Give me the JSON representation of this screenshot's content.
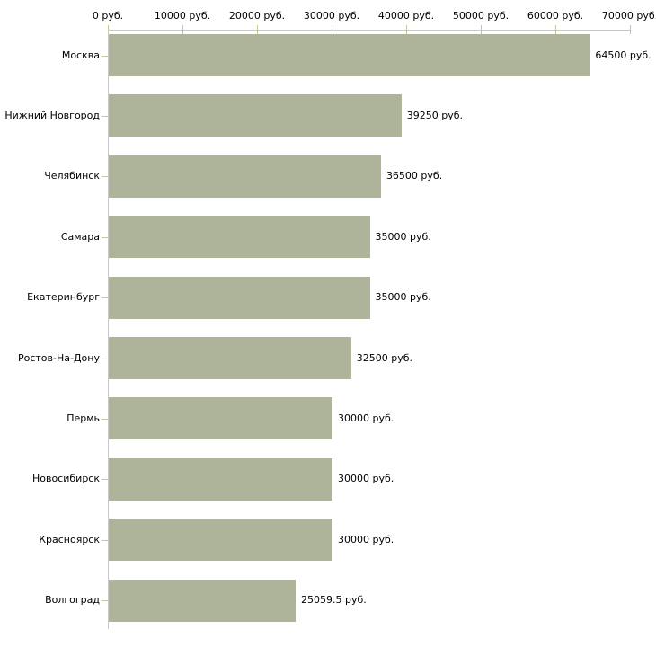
{
  "chart_data": {
    "type": "bar",
    "orientation": "horizontal",
    "title": "",
    "xlabel": "",
    "ylabel": "",
    "grid": false,
    "legend": false,
    "categories": [
      "Москва",
      "Нижний Новгород",
      "Челябинск",
      "Самара",
      "Екатеринбург",
      "Ростов-На-Дону",
      "Пермь",
      "Новосибирск",
      "Красноярск",
      "Волгоград"
    ],
    "values": [
      64500,
      39250,
      36500,
      35000,
      35000,
      32500,
      30000,
      30000,
      30000,
      25059.5
    ],
    "value_labels": [
      "64500 руб.",
      "39250 руб.",
      "36500 руб.",
      "35000 руб.",
      "35000 руб.",
      "32500 руб.",
      "30000 руб.",
      "30000 руб.",
      "30000 руб.",
      "25059.5 руб."
    ],
    "xlim": [
      0,
      70000
    ],
    "x_ticks": [
      0,
      10000,
      20000,
      30000,
      40000,
      50000,
      60000,
      70000
    ],
    "x_tick_labels": [
      "0 руб.",
      "10000 руб.",
      "20000 руб.",
      "30000 руб.",
      "40000 руб.",
      "50000 руб.",
      "60000 руб.",
      "70000 руб."
    ],
    "colors": {
      "bar_fill": "#aeb49a",
      "axis_line": "#c6c6c6",
      "tick_mark": "#c3c79b",
      "text": "#000000",
      "background": "#ffffff"
    }
  }
}
